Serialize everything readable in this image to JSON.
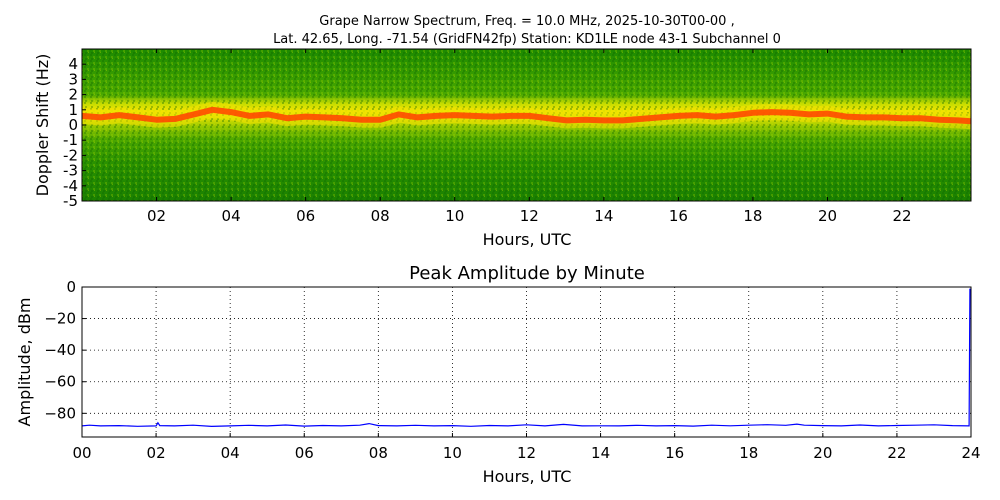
{
  "chart_data": [
    {
      "type": "heatmap",
      "title": "Grape Narrow Spectrum, Freq. = 10.0 MHz, 2025-10-30T00-00 ,",
      "subtitle": "Lat.  42.65, Long. -71.54 (GridFN42fp) Station: KD1LE node 43-1 Subchannel 0",
      "xlabel": "Hours, UTC",
      "ylabel": "Doppler Shift (Hz)",
      "xlim": [
        0,
        23.85
      ],
      "ylim": [
        -5,
        5
      ],
      "x_ticks": [
        "02",
        "04",
        "06",
        "08",
        "10",
        "12",
        "14",
        "16",
        "18",
        "20",
        "22"
      ],
      "x_tick_values": [
        2,
        4,
        6,
        8,
        10,
        12,
        14,
        16,
        18,
        20,
        22
      ],
      "y_ticks": [
        "4",
        "3",
        "2",
        "1",
        "0",
        "-1",
        "-2",
        "-3",
        "-4",
        "-5"
      ],
      "y_tick_values": [
        4,
        3,
        2,
        1,
        0,
        -1,
        -2,
        -3,
        -4,
        -5
      ],
      "colors": {
        "background": "#1a8a00",
        "mid": "#9bd200",
        "high": "#f2e200",
        "peak": "#ff4a00"
      },
      "trace_hours": [
        0,
        0.5,
        1,
        1.5,
        2,
        2.5,
        3,
        3.5,
        4,
        4.5,
        5,
        5.5,
        6,
        6.5,
        7,
        7.5,
        8,
        8.5,
        9,
        9.5,
        10,
        10.5,
        11,
        11.5,
        12,
        12.5,
        13,
        13.5,
        14,
        14.5,
        15,
        15.5,
        16,
        16.5,
        17,
        17.5,
        18,
        18.5,
        19,
        19.5,
        20,
        20.5,
        21,
        21.5,
        22,
        22.5,
        23,
        23.5,
        23.85
      ],
      "trace_doppler_hz": [
        0.6,
        0.5,
        0.65,
        0.5,
        0.35,
        0.4,
        0.7,
        1.0,
        0.85,
        0.6,
        0.7,
        0.45,
        0.55,
        0.5,
        0.45,
        0.35,
        0.35,
        0.7,
        0.5,
        0.6,
        0.65,
        0.6,
        0.55,
        0.6,
        0.6,
        0.45,
        0.3,
        0.35,
        0.3,
        0.3,
        0.4,
        0.5,
        0.6,
        0.65,
        0.55,
        0.65,
        0.8,
        0.85,
        0.8,
        0.7,
        0.75,
        0.55,
        0.5,
        0.5,
        0.45,
        0.45,
        0.35,
        0.3,
        0.25
      ]
    },
    {
      "type": "line",
      "title": "Peak Amplitude by Minute",
      "xlabel": "Hours, UTC",
      "ylabel": "Amplitude, dBm",
      "xlim": [
        0,
        24
      ],
      "ylim": [
        -95,
        0
      ],
      "grid": true,
      "x_ticks": [
        "00",
        "02",
        "04",
        "06",
        "08",
        "10",
        "12",
        "14",
        "16",
        "18",
        "20",
        "22",
        "24"
      ],
      "x_tick_values": [
        0,
        2,
        4,
        6,
        8,
        10,
        12,
        14,
        16,
        18,
        20,
        22,
        24
      ],
      "y_ticks": [
        "0",
        "−20",
        "−40",
        "−60",
        "−80"
      ],
      "y_tick_values": [
        0,
        -20,
        -40,
        -60,
        -80
      ],
      "color": "#0000ff",
      "series": [
        {
          "x": [
            0,
            0.2,
            0.5,
            1,
            1.5,
            2,
            2.05,
            2.1,
            2.5,
            3,
            3.5,
            4,
            4.5,
            5,
            5.5,
            6,
            6.5,
            7,
            7.5,
            7.75,
            8,
            8.5,
            9,
            9.5,
            10,
            10.5,
            11,
            11.5,
            12,
            12.5,
            13,
            13.5,
            14,
            14.5,
            15,
            15.5,
            16,
            16.5,
            17,
            17.5,
            18,
            18.5,
            19,
            19.3,
            19.5,
            20,
            20.5,
            21,
            21.5,
            22,
            22.5,
            23,
            23.5,
            23.95,
            23.97
          ],
          "y": [
            -88,
            -87.5,
            -88,
            -87.8,
            -88.2,
            -88,
            -86,
            -87.8,
            -88,
            -87.5,
            -88.3,
            -88,
            -87.6,
            -88,
            -87.4,
            -88.1,
            -87.7,
            -88,
            -87.5,
            -86.5,
            -87.8,
            -88,
            -87.6,
            -88,
            -87.8,
            -88.2,
            -87.7,
            -88,
            -87.3,
            -88,
            -87,
            -88,
            -87.9,
            -88,
            -87.6,
            -88,
            -87.8,
            -88.1,
            -87.5,
            -87.9,
            -87.5,
            -87.2,
            -87.6,
            -86.8,
            -87.5,
            -87.8,
            -88,
            -87.4,
            -88,
            -87.7,
            -87.5,
            -87.3,
            -87.8,
            -88,
            -1
          ]
        }
      ]
    }
  ]
}
